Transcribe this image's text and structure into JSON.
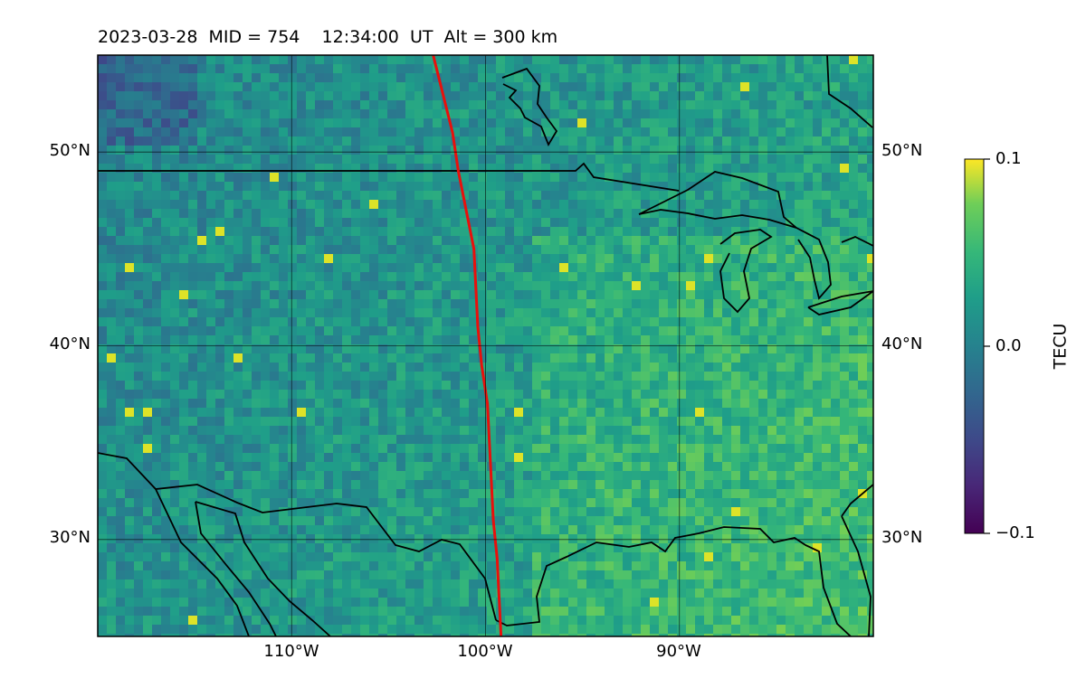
{
  "title": "2023-03-28  MID = 754    12:34:00  UT  Alt = 300 km",
  "map": {
    "lon_range": [
      -120,
      -80
    ],
    "lat_range": [
      25,
      55
    ],
    "grid_lons": [
      -110,
      -100,
      -90
    ],
    "grid_lats": [
      30,
      40,
      50
    ],
    "lon_tick_labels": [
      "110°W",
      "100°W",
      "90°W"
    ],
    "lat_tick_labels": [
      "30°N",
      "40°N",
      "50°N"
    ],
    "terminator_color": "#e8100c",
    "terminator_line": [
      [
        -102.7,
        55
      ],
      [
        -102.2,
        53
      ],
      [
        -101.7,
        51
      ],
      [
        -101.4,
        49
      ],
      [
        -101.0,
        47
      ],
      [
        -100.6,
        45
      ],
      [
        -100.5,
        43
      ],
      [
        -100.4,
        41
      ],
      [
        -100.2,
        39
      ],
      [
        -99.9,
        37
      ],
      [
        -99.8,
        35
      ],
      [
        -99.7,
        33
      ],
      [
        -99.6,
        31
      ],
      [
        -99.4,
        29
      ],
      [
        -99.3,
        27
      ],
      [
        -99.2,
        25
      ]
    ],
    "field_description": "TEC perturbation map, viridis colormap"
  },
  "colorbar": {
    "label": "TECU",
    "min": -0.1,
    "max": 0.1,
    "ticks": [
      "0.1",
      "0.0",
      "−0.1"
    ],
    "colormap": "viridis"
  }
}
